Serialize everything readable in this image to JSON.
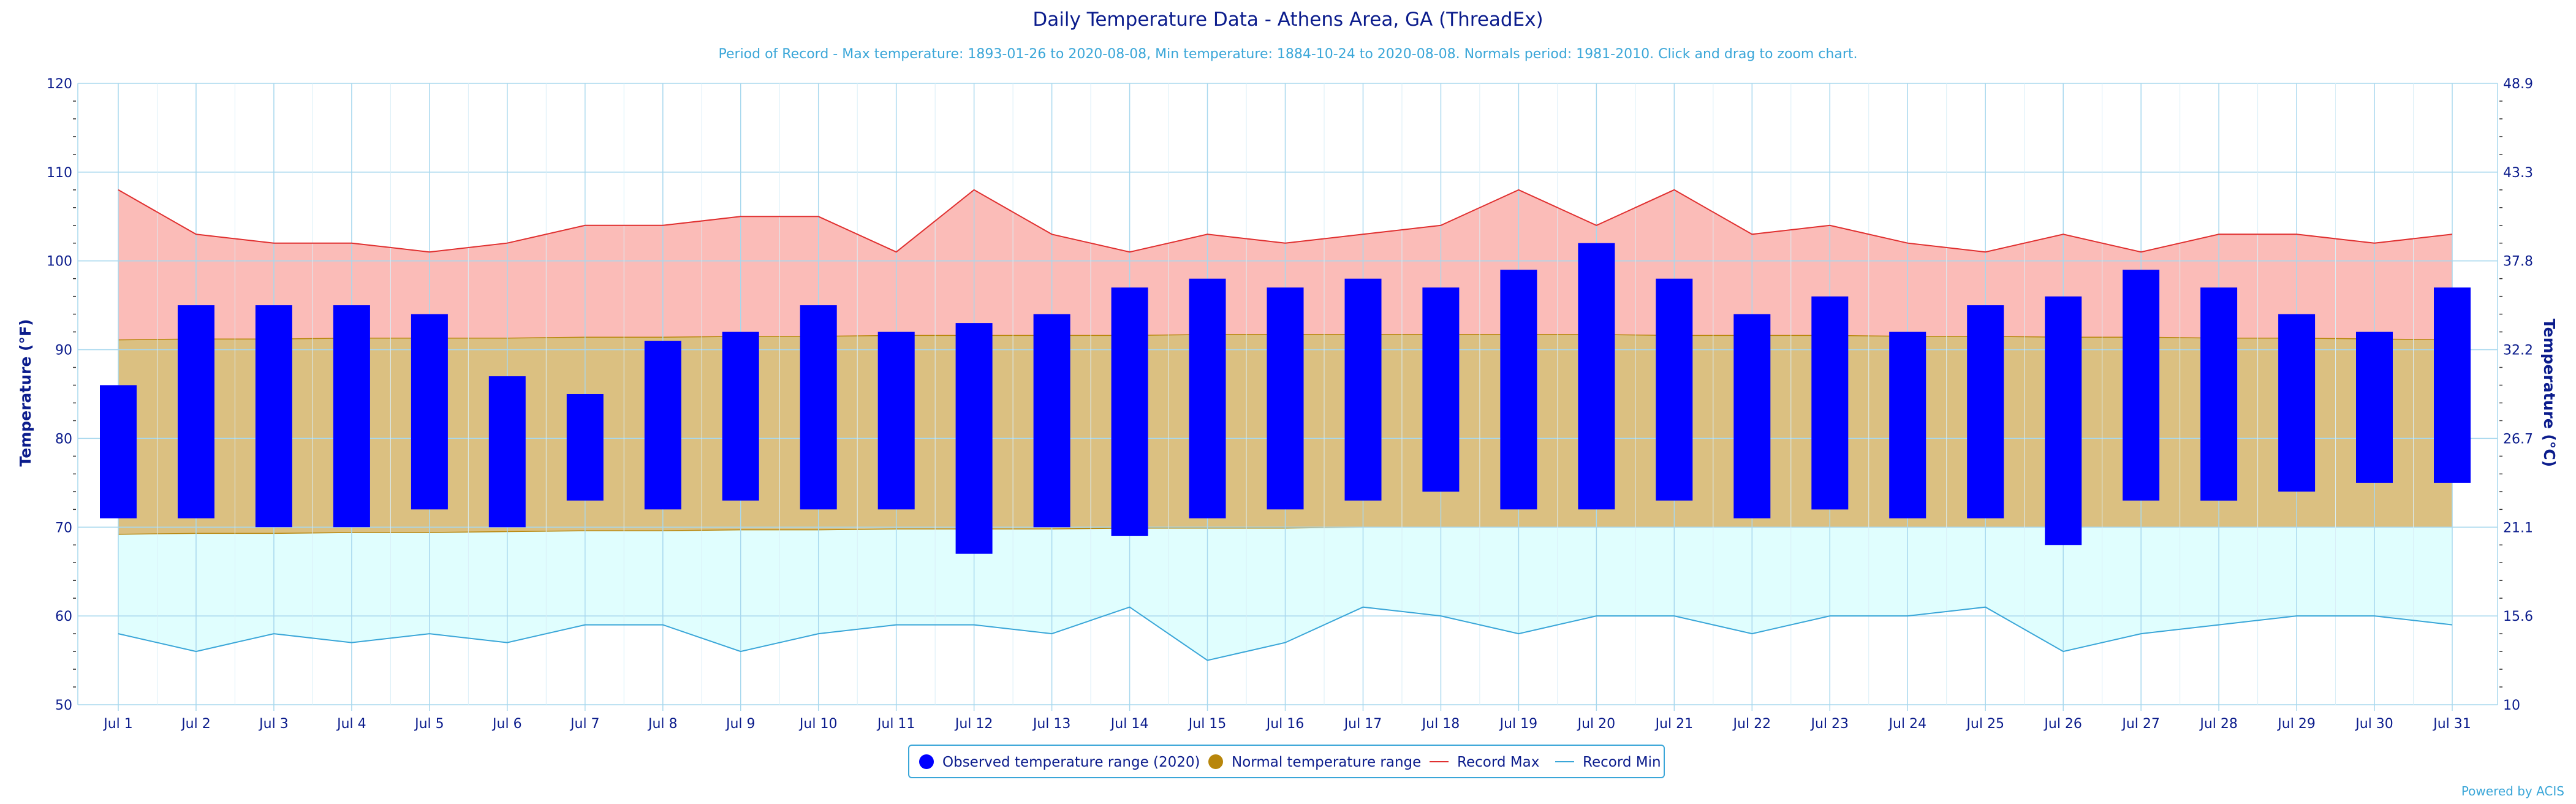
{
  "chart_data": {
    "type": "bar",
    "title": "Daily Temperature Data - Athens Area, GA (ThreadEx)",
    "subtitle": "Period of Record - Max temperature: 1893-01-26 to 2020-08-08, Min temperature: 1884-10-24 to 2020-08-08. Normals period: 1981-2010. Click and drag to zoom chart.",
    "ylabel": "Temperature (°F)",
    "ylabel_right": "Temperature (°C)",
    "ylim": [
      50,
      120
    ],
    "yticks": [
      50,
      60,
      70,
      80,
      90,
      100,
      110,
      120
    ],
    "yticks_right": [
      "10",
      "15.6",
      "21.1",
      "26.7",
      "32.2",
      "37.8",
      "43.3",
      "48.9"
    ],
    "grid": true,
    "categories": [
      "Jul 1",
      "Jul 2",
      "Jul 3",
      "Jul 4",
      "Jul 5",
      "Jul 6",
      "Jul 7",
      "Jul 8",
      "Jul 9",
      "Jul 10",
      "Jul 11",
      "Jul 12",
      "Jul 13",
      "Jul 14",
      "Jul 15",
      "Jul 16",
      "Jul 17",
      "Jul 18",
      "Jul 19",
      "Jul 20",
      "Jul 21",
      "Jul 22",
      "Jul 23",
      "Jul 24",
      "Jul 25",
      "Jul 26",
      "Jul 27",
      "Jul 28",
      "Jul 29",
      "Jul 30",
      "Jul 31"
    ],
    "series": [
      {
        "name": "Observed temperature range (2020)",
        "type": "range-bar",
        "color": "#0000ff",
        "low": [
          71,
          71,
          70,
          70,
          72,
          70,
          73,
          72,
          73,
          72,
          72,
          67,
          70,
          69,
          71,
          72,
          73,
          74,
          72,
          72,
          73,
          71,
          72,
          71,
          71,
          68,
          73,
          73,
          74,
          75,
          75
        ],
        "high": [
          86,
          95,
          95,
          95,
          94,
          87,
          85,
          91,
          92,
          95,
          92,
          93,
          94,
          97,
          98,
          97,
          98,
          97,
          99,
          102,
          98,
          94,
          96,
          92,
          95,
          96,
          99,
          97,
          94,
          92,
          97
        ]
      },
      {
        "name": "Normal temperature range",
        "type": "area-range",
        "color": "#b8860b",
        "fill": "#dbc081",
        "low": [
          69.2,
          69.3,
          69.3,
          69.4,
          69.4,
          69.5,
          69.6,
          69.6,
          69.7,
          69.7,
          69.8,
          69.8,
          69.8,
          69.9,
          69.9,
          69.9,
          70.0,
          70.0,
          70.0,
          70.0,
          70.0,
          70.0,
          70.0,
          70.0,
          70.0,
          70.0,
          70.0,
          70.0,
          70.0,
          70.0,
          70.0
        ],
        "high": [
          91.1,
          91.2,
          91.2,
          91.3,
          91.3,
          91.3,
          91.4,
          91.4,
          91.5,
          91.5,
          91.6,
          91.6,
          91.6,
          91.6,
          91.7,
          91.7,
          91.7,
          91.7,
          91.7,
          91.7,
          91.6,
          91.6,
          91.6,
          91.5,
          91.5,
          91.4,
          91.4,
          91.3,
          91.3,
          91.2,
          91.1
        ]
      },
      {
        "name": "Record Max",
        "type": "line",
        "color": "#e03030",
        "fill": "#fbbcb8",
        "values": [
          108,
          103,
          102,
          102,
          101,
          102,
          104,
          104,
          105,
          105,
          101,
          108,
          103,
          101,
          103,
          102,
          103,
          104,
          108,
          104,
          108,
          103,
          104,
          102,
          101,
          103,
          101,
          103,
          103,
          102,
          103
        ]
      },
      {
        "name": "Record Min",
        "type": "line",
        "color": "#3aa6d8",
        "fill": "#e0fefe",
        "values": [
          58,
          56,
          58,
          57,
          58,
          57,
          59,
          59,
          56,
          58,
          59,
          59,
          58,
          61,
          55,
          57,
          61,
          60,
          58,
          60,
          60,
          58,
          60,
          60,
          61,
          56,
          58,
          59,
          60,
          60,
          59
        ]
      }
    ],
    "legend_position": "bottom-center",
    "credit": "Powered by ACIS"
  }
}
